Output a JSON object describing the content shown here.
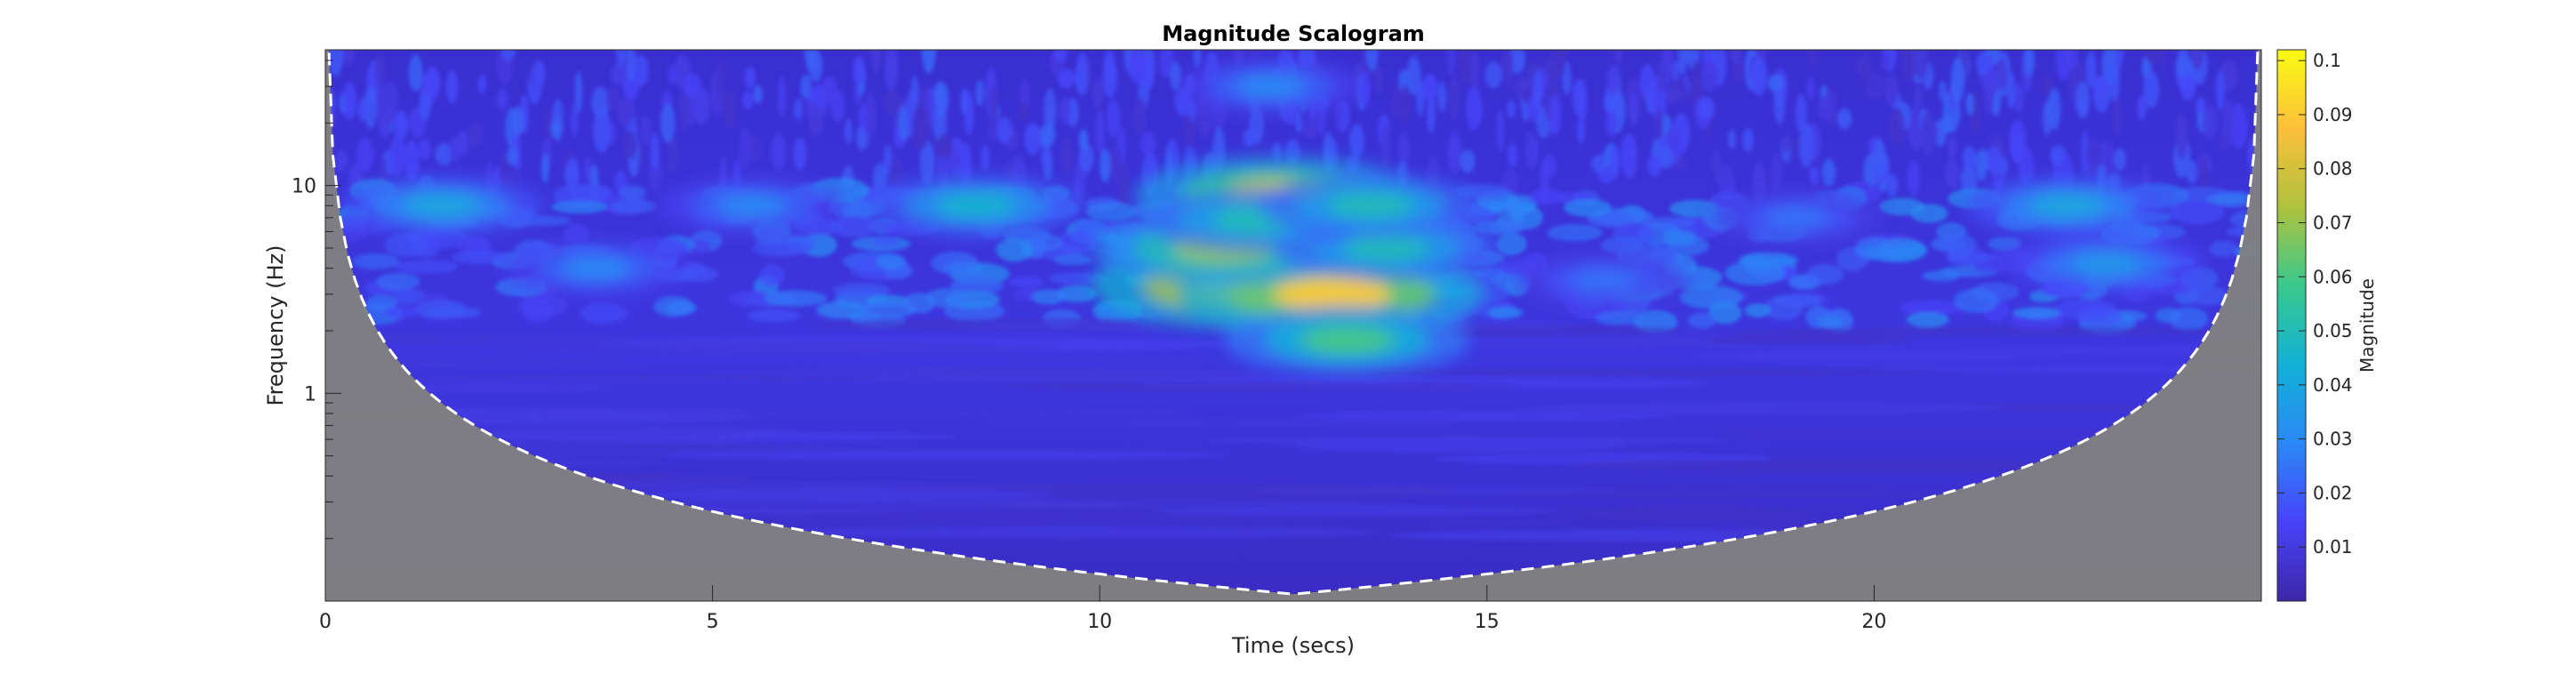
{
  "chart_data": {
    "type": "heatmap",
    "title": "Magnitude Scalogram",
    "xlabel": "Time (secs)",
    "ylabel": "Frequency (Hz)",
    "xlim": [
      0,
      25
    ],
    "ylim_hz": [
      0.1,
      45
    ],
    "yscale": "log",
    "x_ticks": [
      {
        "value": 0,
        "label": "0"
      },
      {
        "value": 5,
        "label": "5"
      },
      {
        "value": 10,
        "label": "10"
      },
      {
        "value": 15,
        "label": "15"
      },
      {
        "value": 20,
        "label": "20"
      }
    ],
    "y_ticks": [
      {
        "value": 1,
        "label": "1"
      },
      {
        "value": 10,
        "label": "10"
      }
    ],
    "colormap": [
      "#3e26a8",
      "#4743f8",
      "#2c88f6",
      "#12b1d6",
      "#39c88e",
      "#aec23e",
      "#fcbf3b",
      "#f9fb15"
    ],
    "cone_of_influence": {
      "style": "dashed",
      "color": "#ffffff",
      "shade_color": "#808080"
    },
    "colorbar": {
      "label": "Magnitude",
      "clim": [
        0,
        0.102
      ],
      "ticks": [
        {
          "value": 0.01,
          "label": "0.01"
        },
        {
          "value": 0.02,
          "label": "0.02"
        },
        {
          "value": 0.03,
          "label": "0.03"
        },
        {
          "value": 0.04,
          "label": "0.04"
        },
        {
          "value": 0.05,
          "label": "0.05"
        },
        {
          "value": 0.06,
          "label": "0.06"
        },
        {
          "value": 0.07,
          "label": "0.07"
        },
        {
          "value": 0.08,
          "label": "0.08"
        },
        {
          "value": 0.09,
          "label": "0.09"
        },
        {
          "value": 0.1,
          "label": "0.1"
        }
      ]
    },
    "features": [
      {
        "time": 12.0,
        "freq_hz": 3.3,
        "magnitude": 0.1
      },
      {
        "time": 13.0,
        "freq_hz": 3.0,
        "magnitude": 0.09
      },
      {
        "time": 12.3,
        "freq_hz": 9.0,
        "magnitude": 0.08
      },
      {
        "time": 11.6,
        "freq_hz": 5.0,
        "magnitude": 0.07
      },
      {
        "time": 13.2,
        "freq_hz": 1.8,
        "magnitude": 0.06
      },
      {
        "time": 13.7,
        "freq_hz": 5.0,
        "magnitude": 0.05
      },
      {
        "time": 12.0,
        "freq_hz": 6.8,
        "magnitude": 0.05
      },
      {
        "time": 13.5,
        "freq_hz": 8.0,
        "magnitude": 0.05
      },
      {
        "time": 8.4,
        "freq_hz": 8.0,
        "magnitude": 0.045
      },
      {
        "time": 1.5,
        "freq_hz": 8.0,
        "magnitude": 0.04
      },
      {
        "time": 22.5,
        "freq_hz": 8.0,
        "magnitude": 0.04
      },
      {
        "time": 23.0,
        "freq_hz": 4.2,
        "magnitude": 0.035
      },
      {
        "time": 3.5,
        "freq_hz": 4.0,
        "magnitude": 0.03
      },
      {
        "time": 5.5,
        "freq_hz": 8.0,
        "magnitude": 0.03
      },
      {
        "time": 16.5,
        "freq_hz": 3.5,
        "magnitude": 0.025
      },
      {
        "time": 19.0,
        "freq_hz": 7.0,
        "magnitude": 0.025
      },
      {
        "time": 12.2,
        "freq_hz": 30.0,
        "magnitude": 0.03
      }
    ]
  }
}
